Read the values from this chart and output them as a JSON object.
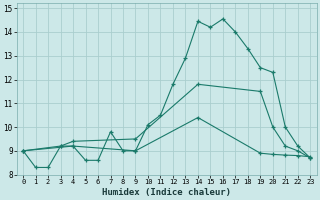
{
  "xlabel": "Humidex (Indice chaleur)",
  "bg_color": "#cce8e8",
  "grid_color": "#aacece",
  "line_color": "#1a7a6a",
  "xlim": [
    -0.5,
    23.5
  ],
  "ylim": [
    8,
    15.2
  ],
  "xticks": [
    0,
    1,
    2,
    3,
    4,
    5,
    6,
    7,
    8,
    9,
    10,
    11,
    12,
    13,
    14,
    15,
    16,
    17,
    18,
    19,
    20,
    21,
    22,
    23
  ],
  "yticks": [
    8,
    9,
    10,
    11,
    12,
    13,
    14,
    15
  ],
  "series1_x": [
    0,
    1,
    2,
    3,
    4,
    5,
    6,
    7,
    8,
    9,
    10,
    11,
    12,
    13,
    14,
    15,
    16,
    17,
    18,
    19,
    20,
    21,
    22,
    23
  ],
  "series1_y": [
    9.0,
    8.3,
    8.3,
    9.2,
    9.2,
    8.6,
    8.6,
    9.8,
    9.0,
    9.0,
    10.1,
    10.5,
    11.8,
    12.9,
    14.45,
    14.2,
    14.55,
    14.0,
    13.3,
    12.5,
    12.3,
    10.0,
    9.2,
    8.7
  ],
  "series2_x": [
    0,
    3,
    4,
    9,
    14,
    19,
    20,
    21,
    22,
    23
  ],
  "series2_y": [
    9.0,
    9.2,
    9.4,
    9.5,
    11.8,
    11.5,
    10.0,
    9.2,
    9.0,
    8.7
  ],
  "series3_x": [
    0,
    4,
    9,
    14,
    19,
    20,
    21,
    22,
    23
  ],
  "series3_y": [
    9.0,
    9.2,
    9.0,
    10.4,
    8.9,
    8.85,
    8.82,
    8.8,
    8.75
  ]
}
